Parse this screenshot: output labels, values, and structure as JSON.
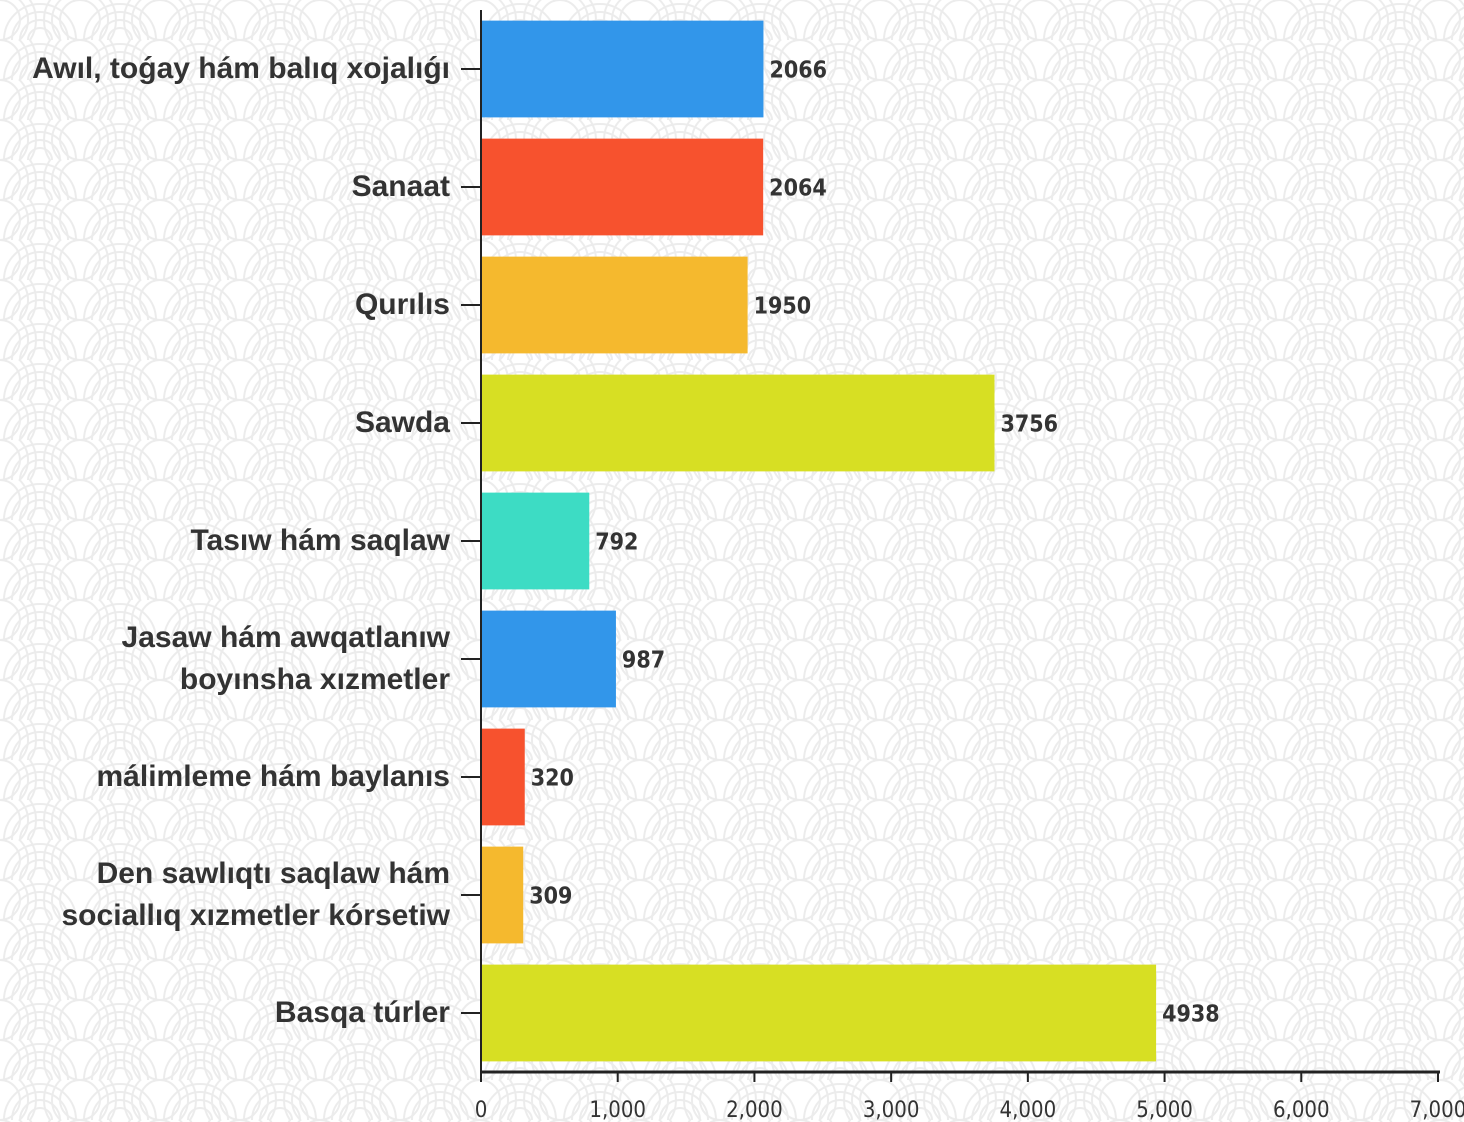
{
  "chart_data": {
    "type": "bar",
    "orientation": "horizontal",
    "categories": [
      "Awıl, toǵay hám balıq xojalıǵı",
      "Sanaat",
      "Qurılıs",
      "Sawda",
      "Tasıw hám saqlaw",
      "Jasaw hám awqatlanıw boyınsha xızmetler",
      "málimleme hám baylanıs",
      "Den sawlıqtı saqlaw hám sociallıq xızmetler kórsetiw",
      "Basqa túrler"
    ],
    "values": [
      2066,
      2064,
      1950,
      3756,
      792,
      987,
      320,
      309,
      4938
    ],
    "colors": [
      "#3296ea",
      "#f7522e",
      "#f5b92e",
      "#d7df23",
      "#3ddcc4",
      "#3296ea",
      "#f7522e",
      "#f5b92e",
      "#d7df23"
    ],
    "xlim": [
      0,
      7000
    ],
    "xticks": [
      0,
      {
        "value": 1000,
        "label": "1,000"
      },
      {
        "value": 2000,
        "label": "2,000"
      },
      {
        "value": 3000,
        "label": "3,000"
      },
      {
        "value": 4000,
        "label": "4,000"
      },
      {
        "value": 5000,
        "label": "5,000"
      },
      {
        "value": 6000,
        "label": "6,000"
      },
      {
        "value": 7000,
        "label": "7,000"
      }
    ]
  }
}
